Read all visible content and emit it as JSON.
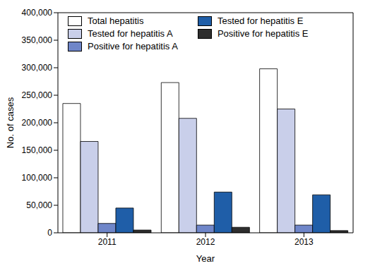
{
  "chart_data": {
    "type": "bar",
    "categories": [
      "2011",
      "2012",
      "2013"
    ],
    "x_label": "Year",
    "y_label": "No. of cases",
    "series": [
      {
        "name": "Total hepatitis",
        "color": "#ffffff",
        "values": [
          235000,
          273000,
          298000
        ]
      },
      {
        "name": "Tested for hepatitis A",
        "color": "#c9cfea",
        "values": [
          166000,
          208000,
          225000
        ]
      },
      {
        "name": "Positive for hepatitis A",
        "color": "#6f86c9",
        "values": [
          17000,
          14000,
          14000
        ]
      },
      {
        "name": "Tested for hepatitis E",
        "color": "#1f5ea8",
        "values": [
          45000,
          74000,
          69000
        ]
      },
      {
        "name": "Positive for hepatitis E",
        "color": "#2e2e2e",
        "values": [
          5000,
          10000,
          4000
        ]
      }
    ],
    "ylim": [
      0,
      400000
    ],
    "yticks": [
      0,
      {
        "value": 50000,
        "label": "50,000"
      },
      {
        "value": 100000,
        "label": "100,000"
      },
      {
        "value": 150000,
        "label": "150,000"
      },
      {
        "value": 200000,
        "label": "200,000"
      },
      {
        "value": 250000,
        "label": "250,000"
      },
      {
        "value": 300000,
        "label": "300,000"
      },
      {
        "value": 350000,
        "label": "350,000"
      },
      {
        "value": 400000,
        "label": "400,000"
      }
    ],
    "grid": false,
    "legend": "upper left"
  }
}
